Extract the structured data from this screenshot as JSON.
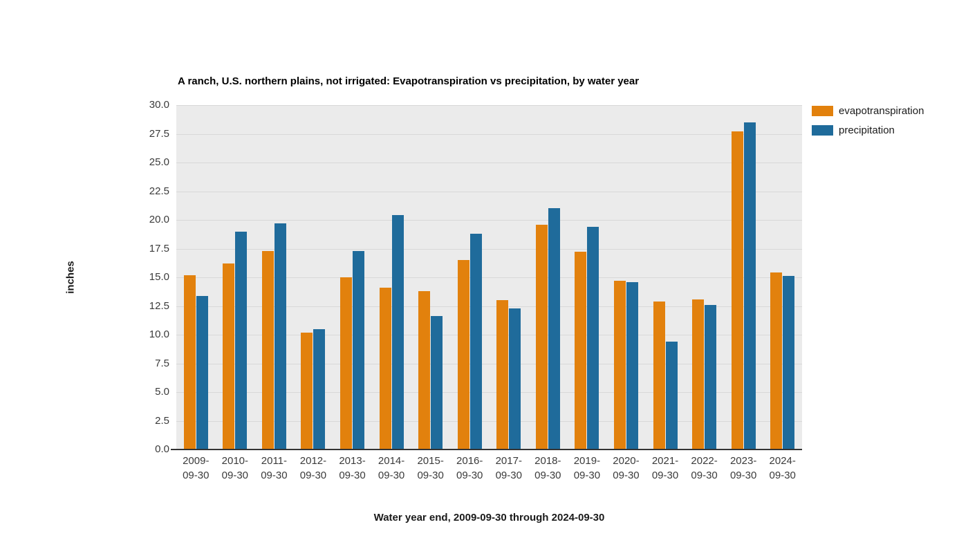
{
  "chart_data": {
    "type": "bar",
    "title": "A ranch, U.S. northern plains, not irrigated: Evapotranspiration vs precipitation, by water year",
    "xlabel": "Water year end, 2009-09-30 through 2024-09-30",
    "ylabel": "inches",
    "categories": [
      "2009-09-30",
      "2010-09-30",
      "2011-09-30",
      "2012-09-30",
      "2013-09-30",
      "2014-09-30",
      "2015-09-30",
      "2016-09-30",
      "2017-09-30",
      "2018-09-30",
      "2019-09-30",
      "2020-09-30",
      "2021-09-30",
      "2022-09-30",
      "2023-09-30",
      "2024-09-30"
    ],
    "series": [
      {
        "name": "evapotranspiration",
        "color": "#E2810D",
        "values": [
          15.2,
          16.2,
          17.3,
          10.2,
          15.0,
          14.1,
          13.8,
          16.5,
          13.0,
          19.6,
          17.2,
          14.7,
          12.9,
          13.1,
          27.7,
          15.4
        ]
      },
      {
        "name": "precipitation",
        "color": "#1F6B9B",
        "values": [
          13.4,
          19.0,
          19.7,
          10.5,
          17.3,
          20.4,
          11.6,
          18.8,
          12.3,
          21.0,
          19.4,
          14.6,
          9.4,
          12.6,
          28.5,
          15.1
        ]
      }
    ],
    "ylim": [
      0,
      30
    ],
    "ytick_step": 2.5,
    "ytick_labels": [
      "0.0",
      "2.5",
      "5.0",
      "7.5",
      "10.0",
      "12.5",
      "15.0",
      "17.5",
      "20.0",
      "22.5",
      "25.0",
      "27.5",
      "30.0"
    ],
    "grid": "horizontal",
    "legend_position": "top-right",
    "colors": {
      "plot_background": "#EBEBEB",
      "gridline": "#D8D8D8",
      "axis_line": "#333333",
      "tick_text": "#3a3a3a"
    }
  }
}
